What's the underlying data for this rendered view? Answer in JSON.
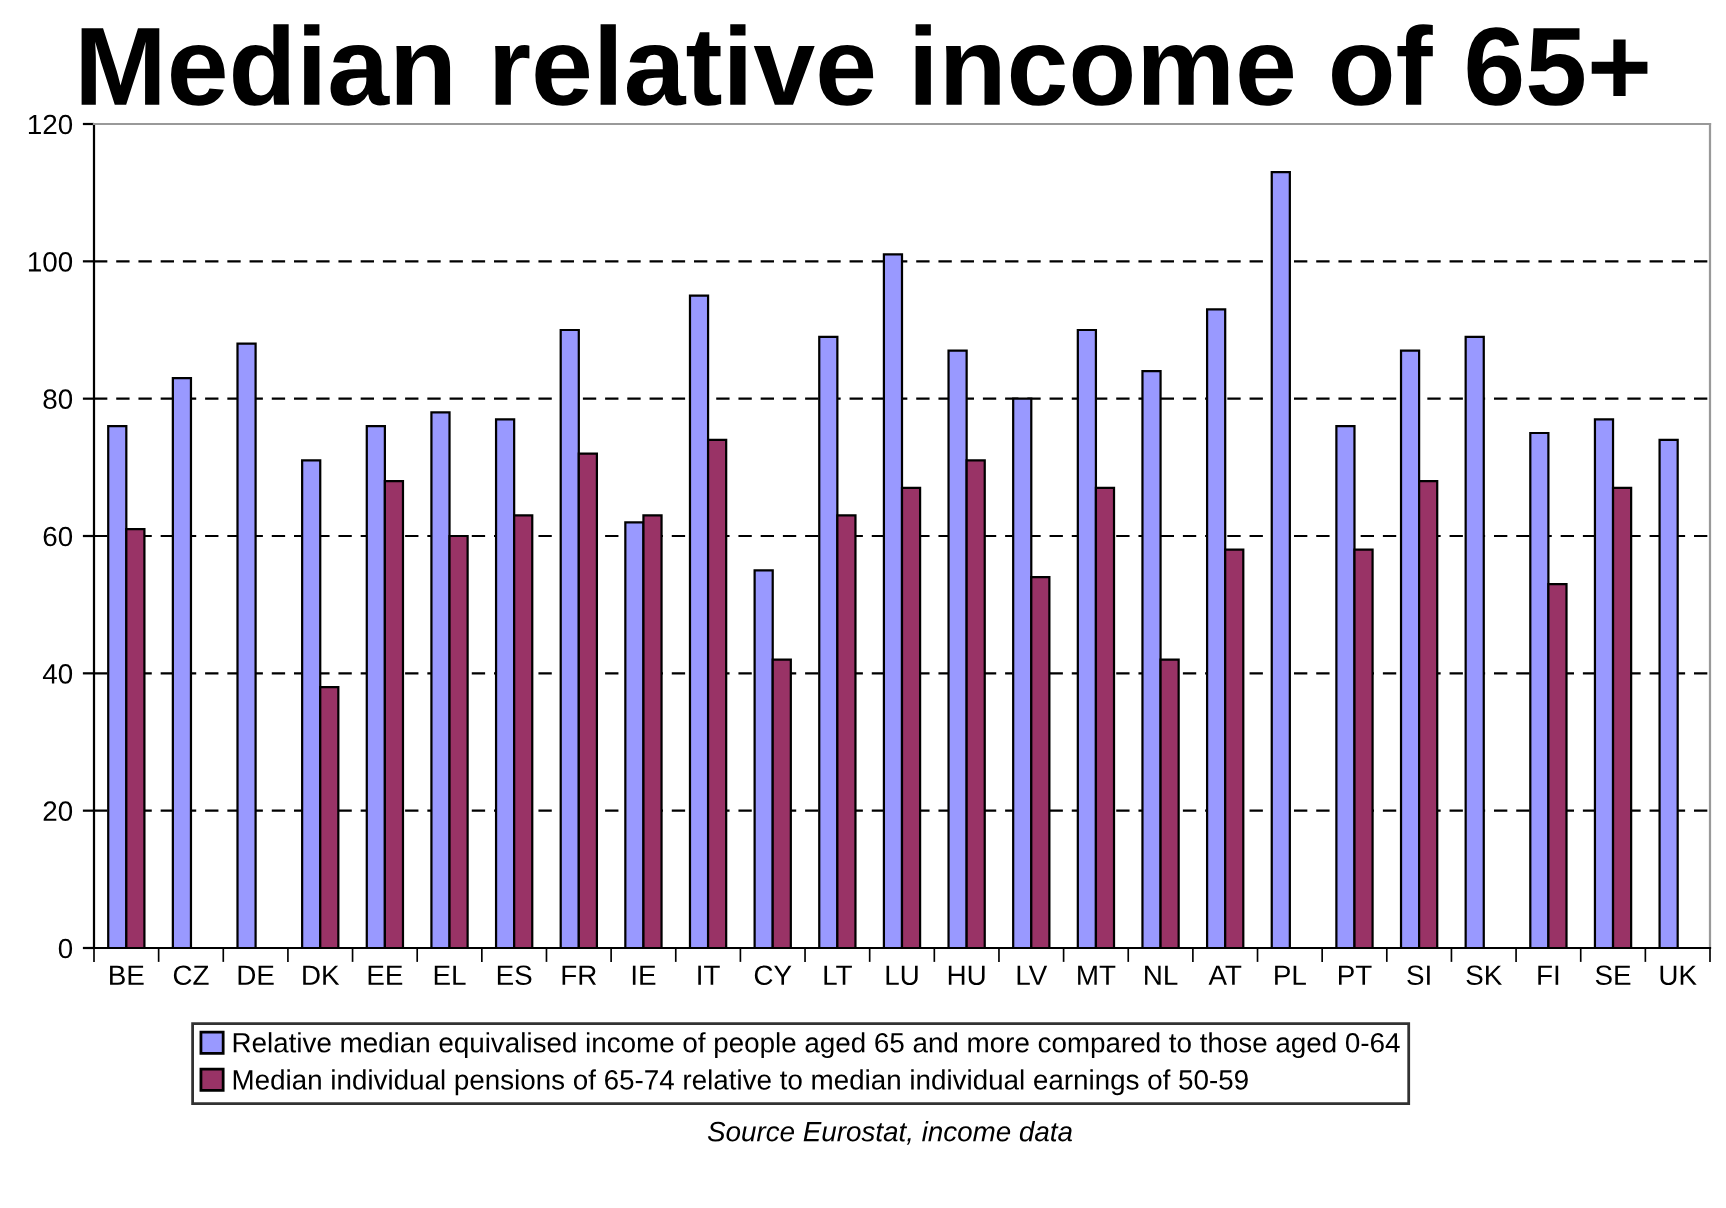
{
  "chart_data": {
    "type": "bar",
    "title": "Median relative income of 65+",
    "categories": [
      "BE",
      "CZ",
      "DE",
      "DK",
      "EE",
      "EL",
      "ES",
      "FR",
      "IE",
      "IT",
      "CY",
      "LT",
      "LU",
      "HU",
      "LV",
      "MT",
      "NL",
      "AT",
      "PL",
      "PT",
      "SI",
      "SK",
      "FI",
      "SE",
      "UK"
    ],
    "series": [
      {
        "name": "Relative median equivalised income of people aged 65 and more compared to those aged 0-64",
        "color": "#9999ff",
        "values": [
          76,
          83,
          88,
          71,
          76,
          78,
          77,
          90,
          62,
          95,
          55,
          89,
          101,
          87,
          80,
          90,
          84,
          93,
          113,
          76,
          87,
          89,
          75,
          77,
          74
        ]
      },
      {
        "name": "Median individual pensions of 65-74 relative to median individual earnings of 50-59",
        "color": "#993366",
        "values": [
          61,
          null,
          null,
          38,
          68,
          60,
          63,
          72,
          63,
          74,
          42,
          63,
          67,
          71,
          54,
          67,
          42,
          58,
          null,
          58,
          68,
          null,
          53,
          67,
          null
        ]
      }
    ],
    "ylim": [
      0,
      120
    ],
    "yticks": [
      0,
      20,
      40,
      60,
      80,
      100,
      120
    ],
    "grid": "y",
    "legend": "bottom",
    "annotations": [
      "Source Eurostat, income data"
    ]
  }
}
